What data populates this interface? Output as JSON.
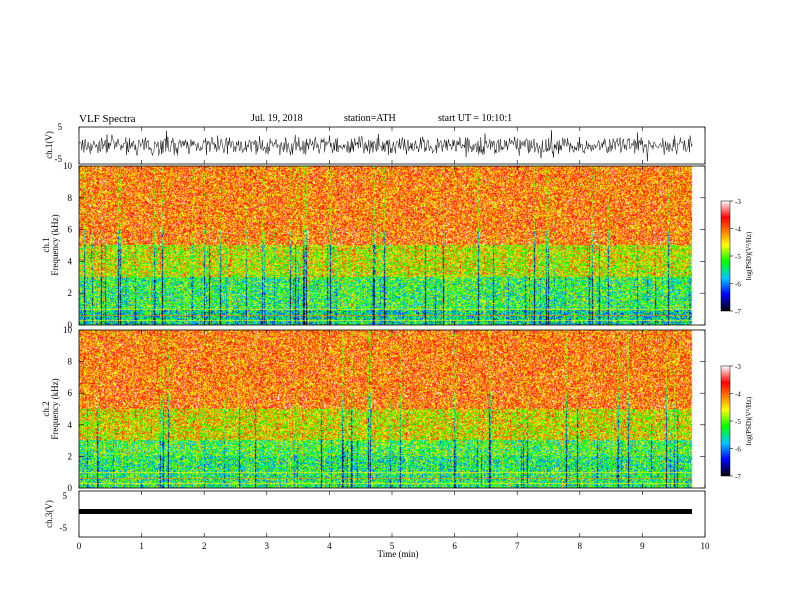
{
  "header": {
    "title": "VLF Spectra",
    "date": "Jul. 19, 2018",
    "station": "station=ATH",
    "start_ut": "start UT = 10:10:1"
  },
  "chart_data": [
    {
      "type": "line",
      "ylabel": "ch.1(V)",
      "ylim": [
        -5,
        5
      ],
      "yticks": [
        "5",
        "-5"
      ],
      "description_series": "broadband noisy waveform, envelope roughly -3 to +3 V",
      "x_range_min": [
        0,
        9.8
      ]
    },
    {
      "type": "heatmap",
      "ylabel": "Frequency (kHz)",
      "channel_label": "ch.1",
      "ylim": [
        0,
        10
      ],
      "yticks": [
        "0",
        "2",
        "4",
        "6",
        "8",
        "10"
      ],
      "colorbar": {
        "label": "log(PSD)(V²/Hz)",
        "ticks": [
          "-3",
          "-4",
          "-5",
          "-6",
          "-7"
        ],
        "range": [
          -7,
          -3
        ]
      },
      "bands_khz": [
        {
          "from": 5.0,
          "to": 10.0,
          "level": -4.0
        },
        {
          "from": 3.0,
          "to": 5.0,
          "level": -4.7
        },
        {
          "from": 1.0,
          "to": 3.0,
          "level": -5.3
        },
        {
          "from": 0.0,
          "to": 1.0,
          "level": -5.6
        }
      ]
    },
    {
      "type": "heatmap",
      "ylabel": "Frequency (kHz)",
      "channel_label": "ch.2",
      "ylim": [
        0,
        10
      ],
      "yticks": [
        "0",
        "2",
        "4",
        "6",
        "8",
        "10"
      ],
      "colorbar": {
        "label": "log(PSD)(V²/Hz)",
        "ticks": [
          "-3",
          "-4",
          "-5",
          "-6",
          "-7"
        ],
        "range": [
          -7,
          -3
        ]
      },
      "bands_khz": [
        {
          "from": 5.0,
          "to": 10.0,
          "level": -4.0
        },
        {
          "from": 3.0,
          "to": 5.0,
          "level": -4.6
        },
        {
          "from": 2.0,
          "to": 3.0,
          "level": -5.2
        },
        {
          "from": 0.0,
          "to": 2.0,
          "level": -5.4
        }
      ]
    },
    {
      "type": "line",
      "ylabel": "ch.3(V)",
      "ylim": [
        -5,
        5
      ],
      "yticks": [
        "5",
        "-5"
      ],
      "constant_value_v": 0.0
    }
  ],
  "x_axis": {
    "label": "Time (min)",
    "ticks": [
      "0",
      "1",
      "2",
      "3",
      "4",
      "5",
      "6",
      "7",
      "8",
      "9",
      "10"
    ],
    "range": [
      0,
      10
    ],
    "data_end": 9.8
  },
  "colors": {
    "colormap": [
      "#000000",
      "#0000ff",
      "#00c8ff",
      "#00ff00",
      "#ffff00",
      "#ff8000",
      "#ff0000",
      "#ffffff"
    ]
  }
}
